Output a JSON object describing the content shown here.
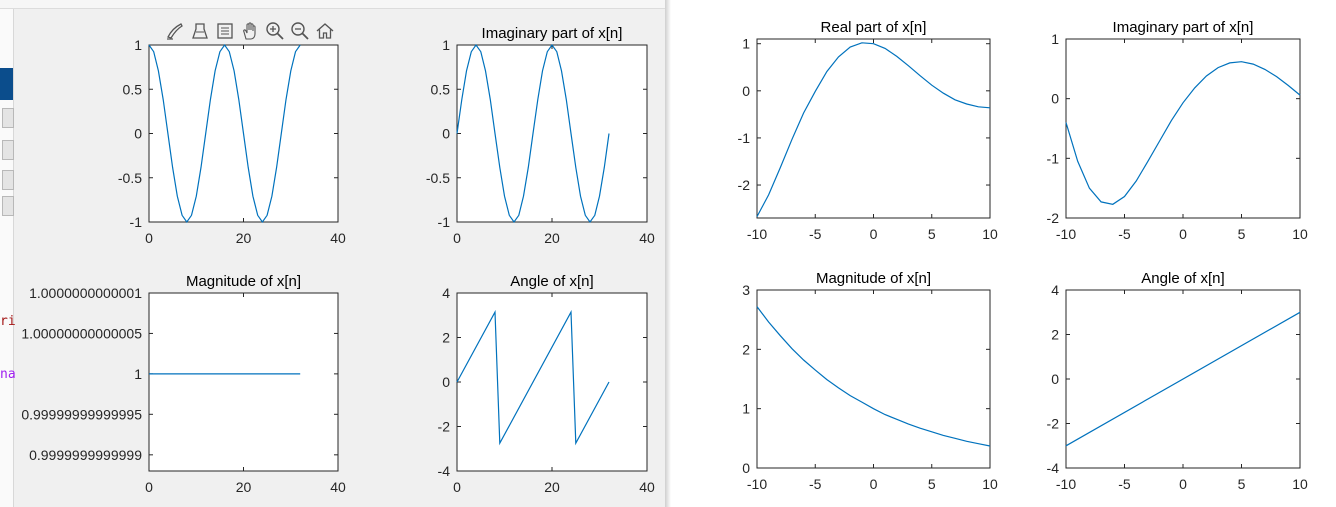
{
  "editor": {
    "snippets": [
      {
        "text": "ri",
        "color": "#a31515"
      },
      {
        "text": "na",
        "color": "#a020f0"
      }
    ]
  },
  "left_figure": {
    "toolbar": [
      "brush-icon",
      "data-tip-icon",
      "legend-icon",
      "pan-hand-icon",
      "zoom-in-icon",
      "zoom-out-icon",
      "home-icon"
    ]
  },
  "chart_data": [
    {
      "id": "left-real",
      "type": "line",
      "title": "",
      "color": "#0072bd",
      "xlim": [
        0,
        40
      ],
      "ylim": [
        -1,
        1
      ],
      "xticks": [
        0,
        20,
        40
      ],
      "xticklabels": [
        "0",
        "20",
        "40"
      ],
      "yticks": [
        -1,
        -0.5,
        0,
        0.5,
        1
      ],
      "yticklabels": [
        "-1",
        "-0.5",
        "0",
        "0.5",
        "1"
      ],
      "x": [
        0,
        1,
        2,
        3,
        4,
        5,
        6,
        7,
        8,
        9,
        10,
        11,
        12,
        13,
        14,
        15,
        16,
        17,
        18,
        19,
        20,
        21,
        22,
        23,
        24,
        25,
        26,
        27,
        28,
        29,
        30,
        31,
        32
      ],
      "y": [
        1,
        0.924,
        0.707,
        0.383,
        0,
        -0.383,
        -0.707,
        -0.924,
        -1,
        -0.924,
        -0.707,
        -0.383,
        0,
        0.383,
        0.707,
        0.924,
        1,
        0.924,
        0.707,
        0.383,
        0,
        -0.383,
        -0.707,
        -0.924,
        -1,
        -0.924,
        -0.707,
        -0.383,
        0,
        0.383,
        0.707,
        0.924,
        1
      ]
    },
    {
      "id": "left-imag",
      "type": "line",
      "title": "Imaginary part of x[n]",
      "color": "#0072bd",
      "xlim": [
        0,
        40
      ],
      "ylim": [
        -1,
        1
      ],
      "xticks": [
        0,
        20,
        40
      ],
      "xticklabels": [
        "0",
        "20",
        "40"
      ],
      "yticks": [
        -1,
        -0.5,
        0,
        0.5,
        1
      ],
      "yticklabels": [
        "-1",
        "-0.5",
        "0",
        "0.5",
        "1"
      ],
      "x": [
        0,
        1,
        2,
        3,
        4,
        5,
        6,
        7,
        8,
        9,
        10,
        11,
        12,
        13,
        14,
        15,
        16,
        17,
        18,
        19,
        20,
        21,
        22,
        23,
        24,
        25,
        26,
        27,
        28,
        29,
        30,
        31,
        32
      ],
      "y": [
        0,
        0.383,
        0.707,
        0.924,
        1,
        0.924,
        0.707,
        0.383,
        0,
        -0.383,
        -0.707,
        -0.924,
        -1,
        -0.924,
        -0.707,
        -0.383,
        0,
        0.383,
        0.707,
        0.924,
        1,
        0.924,
        0.707,
        0.383,
        0,
        -0.383,
        -0.707,
        -0.924,
        -1,
        -0.924,
        -0.707,
        -0.383,
        0
      ]
    },
    {
      "id": "left-mag",
      "type": "line",
      "title": "Magnitude of x[n]",
      "color": "#0072bd",
      "xlim": [
        0,
        40
      ],
      "ylim": [
        0.99999999999988,
        1.0000000000001
      ],
      "xticks": [
        0,
        20,
        40
      ],
      "xticklabels": [
        "0",
        "20",
        "40"
      ],
      "yticks": [
        0.9999999999999,
        0.99999999999995,
        1,
        1.00000000000005,
        1.0000000000001
      ],
      "yticklabels": [
        "0.9999999999999",
        "0.99999999999995",
        "1",
        "1.00000000000005",
        "1.0000000000001"
      ],
      "x": [
        0,
        32
      ],
      "y": [
        1,
        1
      ]
    },
    {
      "id": "left-angle",
      "type": "line",
      "title": "Angle of x[n]",
      "color": "#0072bd",
      "xlim": [
        0,
        40
      ],
      "ylim": [
        -4,
        4
      ],
      "xticks": [
        0,
        20,
        40
      ],
      "xticklabels": [
        "0",
        "20",
        "40"
      ],
      "yticks": [
        -4,
        -2,
        0,
        2,
        4
      ],
      "yticklabels": [
        "-4",
        "-2",
        "0",
        "2",
        "4"
      ],
      "x": [
        0,
        8,
        9,
        24,
        25,
        32
      ],
      "y": [
        0,
        3.14,
        -2.75,
        3.14,
        -2.75,
        0
      ]
    },
    {
      "id": "right-real",
      "type": "line",
      "title": "Real part of x[n]",
      "color": "#0072bd",
      "xlim": [
        -10,
        10
      ],
      "ylim": [
        -2.7,
        1.1
      ],
      "xticks": [
        -10,
        -5,
        0,
        5,
        10
      ],
      "xticklabels": [
        "-10",
        "-5",
        "0",
        "5",
        "10"
      ],
      "yticks": [
        -2,
        -1,
        0,
        1
      ],
      "yticklabels": [
        "-2",
        "-1",
        "0",
        "1"
      ],
      "x": [
        -10,
        -9,
        -8,
        -7,
        -6,
        -5,
        -4,
        -3,
        -2,
        -1,
        0,
        1,
        2,
        3,
        4,
        5,
        6,
        7,
        8,
        9,
        10
      ],
      "y": [
        -2.67,
        -2.21,
        -1.63,
        -1.03,
        -0.47,
        -0.01,
        0.41,
        0.72,
        0.93,
        1.02,
        1.0,
        0.9,
        0.73,
        0.53,
        0.32,
        0.12,
        -0.05,
        -0.19,
        -0.28,
        -0.34,
        -0.36
      ]
    },
    {
      "id": "right-imag",
      "type": "line",
      "title": "Imaginary part of x[n]",
      "color": "#0072bd",
      "xlim": [
        -10,
        10
      ],
      "ylim": [
        -2,
        1
      ],
      "xticks": [
        -10,
        -5,
        0,
        5,
        10
      ],
      "xticklabels": [
        "-10",
        "-5",
        "0",
        "5",
        "10"
      ],
      "yticks": [
        -2,
        -1,
        0,
        1
      ],
      "yticklabels": [
        "-2",
        "-1",
        "0",
        "1"
      ],
      "x": [
        -10,
        -9,
        -8,
        -7,
        -6,
        -5,
        -4,
        -3,
        -2,
        -1,
        0,
        1,
        2,
        3,
        4,
        5,
        6,
        7,
        8,
        9,
        10
      ],
      "y": [
        -0.4,
        -1.05,
        -1.5,
        -1.73,
        -1.77,
        -1.64,
        -1.38,
        -1.05,
        -0.71,
        -0.37,
        -0.07,
        0.18,
        0.38,
        0.52,
        0.6,
        0.62,
        0.58,
        0.49,
        0.37,
        0.22,
        0.06
      ]
    },
    {
      "id": "right-mag",
      "type": "line",
      "title": "Magnitude of x[n]",
      "color": "#0072bd",
      "xlim": [
        -10,
        10
      ],
      "ylim": [
        0,
        3
      ],
      "xticks": [
        -10,
        -5,
        0,
        5,
        10
      ],
      "xticklabels": [
        "-10",
        "-5",
        "0",
        "5",
        "10"
      ],
      "yticks": [
        0,
        1,
        2,
        3
      ],
      "yticklabels": [
        "0",
        "1",
        "2",
        "3"
      ],
      "x": [
        -10,
        -9,
        -8,
        -7,
        -6,
        -5,
        -4,
        -3,
        -2,
        -1,
        0,
        1,
        2,
        3,
        4,
        5,
        6,
        7,
        8,
        9,
        10
      ],
      "y": [
        2.72,
        2.46,
        2.23,
        2.01,
        1.82,
        1.65,
        1.49,
        1.35,
        1.22,
        1.11,
        1.0,
        0.9,
        0.82,
        0.74,
        0.67,
        0.61,
        0.55,
        0.5,
        0.45,
        0.41,
        0.37
      ]
    },
    {
      "id": "right-angle",
      "type": "line",
      "title": "Angle of x[n]",
      "color": "#0072bd",
      "xlim": [
        -10,
        10
      ],
      "ylim": [
        -4,
        4
      ],
      "xticks": [
        -10,
        -5,
        0,
        5,
        10
      ],
      "xticklabels": [
        "-10",
        "-5",
        "0",
        "5",
        "10"
      ],
      "yticks": [
        -4,
        -2,
        0,
        2,
        4
      ],
      "yticklabels": [
        "-4",
        "-2",
        "0",
        "2",
        "4"
      ],
      "x": [
        -10,
        10
      ],
      "y": [
        -3,
        3
      ]
    }
  ]
}
